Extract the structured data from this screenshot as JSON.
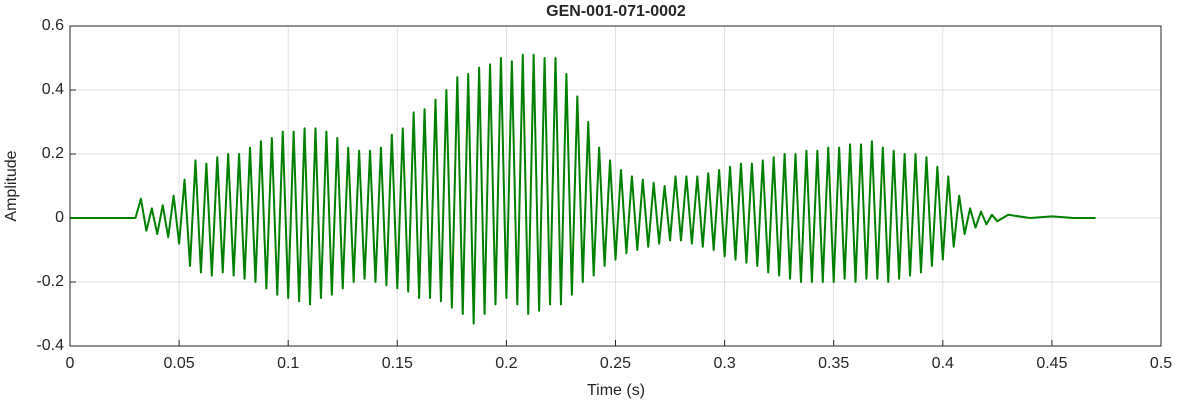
{
  "chart_data": {
    "type": "line",
    "title": "GEN-001-071-0002",
    "x_label": "Time (s)",
    "y_label": "Amplitude",
    "color": "#007f00",
    "grid": true,
    "xlim": [
      0,
      0.5
    ],
    "xticks": [
      0,
      0.05,
      0.1,
      0.15,
      0.2,
      0.25,
      0.3,
      0.35,
      0.4,
      0.45,
      0.5
    ],
    "ylim": [
      -0.4,
      0.6
    ],
    "yticks": [
      -0.4,
      -0.2,
      0,
      0.2,
      0.4,
      0.6
    ],
    "x": [
      0,
      0.02,
      0.03,
      0.0325,
      0.035,
      0.0375,
      0.04,
      0.0425,
      0.045,
      0.0475,
      0.05,
      0.0525,
      0.055,
      0.0575,
      0.06,
      0.0625,
      0.065,
      0.0675,
      0.07,
      0.0725,
      0.075,
      0.0775,
      0.08,
      0.0825,
      0.085,
      0.0875,
      0.09,
      0.0925,
      0.095,
      0.0975,
      0.1,
      0.1025,
      0.105,
      0.1075,
      0.11,
      0.1125,
      0.115,
      0.1175,
      0.12,
      0.1225,
      0.125,
      0.1275,
      0.13,
      0.1325,
      0.135,
      0.1375,
      0.14,
      0.1425,
      0.145,
      0.1475,
      0.15,
      0.1525,
      0.155,
      0.1575,
      0.16,
      0.1625,
      0.165,
      0.1675,
      0.17,
      0.1725,
      0.175,
      0.1775,
      0.18,
      0.1825,
      0.185,
      0.1875,
      0.19,
      0.1925,
      0.195,
      0.1975,
      0.2,
      0.2025,
      0.205,
      0.2075,
      0.21,
      0.2125,
      0.215,
      0.2175,
      0.22,
      0.2225,
      0.225,
      0.2275,
      0.23,
      0.2325,
      0.235,
      0.2375,
      0.24,
      0.2425,
      0.245,
      0.2475,
      0.25,
      0.2525,
      0.255,
      0.2575,
      0.26,
      0.2625,
      0.265,
      0.2675,
      0.27,
      0.2725,
      0.275,
      0.2775,
      0.28,
      0.2825,
      0.285,
      0.2875,
      0.29,
      0.2925,
      0.295,
      0.2975,
      0.3,
      0.3025,
      0.305,
      0.3075,
      0.31,
      0.3125,
      0.315,
      0.3175,
      0.32,
      0.3225,
      0.325,
      0.3275,
      0.33,
      0.3325,
      0.335,
      0.3375,
      0.34,
      0.3425,
      0.345,
      0.3475,
      0.35,
      0.3525,
      0.355,
      0.3575,
      0.36,
      0.3625,
      0.365,
      0.3675,
      0.37,
      0.3725,
      0.375,
      0.3775,
      0.38,
      0.3825,
      0.385,
      0.3875,
      0.39,
      0.3925,
      0.395,
      0.3975,
      0.4,
      0.4025,
      0.405,
      0.4075,
      0.41,
      0.4125,
      0.415,
      0.4175,
      0.42,
      0.4225,
      0.425,
      0.43,
      0.44,
      0.45,
      0.46,
      0.47
    ],
    "values": [
      0,
      0,
      0,
      0.06,
      -0.04,
      0.03,
      -0.05,
      0.04,
      -0.06,
      0.07,
      -0.08,
      0.12,
      -0.15,
      0.18,
      -0.17,
      0.17,
      -0.18,
      0.19,
      -0.17,
      0.2,
      -0.18,
      0.2,
      -0.19,
      0.22,
      -0.2,
      0.24,
      -0.22,
      0.25,
      -0.24,
      0.27,
      -0.25,
      0.27,
      -0.26,
      0.28,
      -0.27,
      0.28,
      -0.25,
      0.27,
      -0.24,
      0.25,
      -0.22,
      0.22,
      -0.2,
      0.21,
      -0.19,
      0.21,
      -0.2,
      0.22,
      -0.21,
      0.26,
      -0.22,
      0.28,
      -0.23,
      0.33,
      -0.25,
      0.34,
      -0.25,
      0.37,
      -0.26,
      0.4,
      -0.28,
      0.44,
      -0.3,
      0.45,
      -0.33,
      0.47,
      -0.3,
      0.48,
      -0.27,
      0.5,
      -0.25,
      0.49,
      -0.27,
      0.51,
      -0.3,
      0.51,
      -0.29,
      0.5,
      -0.27,
      0.5,
      -0.27,
      0.45,
      -0.24,
      0.38,
      -0.2,
      0.3,
      -0.18,
      0.22,
      -0.15,
      0.18,
      -0.13,
      0.15,
      -0.11,
      0.13,
      -0.1,
      0.12,
      -0.09,
      0.11,
      -0.08,
      0.1,
      -0.07,
      0.13,
      -0.07,
      0.13,
      -0.08,
      0.13,
      -0.09,
      0.14,
      -0.1,
      0.15,
      -0.12,
      0.16,
      -0.13,
      0.17,
      -0.14,
      0.17,
      -0.15,
      0.18,
      -0.17,
      0.19,
      -0.18,
      0.2,
      -0.19,
      0.2,
      -0.2,
      0.21,
      -0.2,
      0.21,
      -0.2,
      0.22,
      -0.2,
      0.22,
      -0.19,
      0.23,
      -0.2,
      0.23,
      -0.19,
      0.24,
      -0.19,
      0.22,
      -0.2,
      0.21,
      -0.19,
      0.2,
      -0.18,
      0.2,
      -0.17,
      0.19,
      -0.15,
      0.16,
      -0.13,
      0.13,
      -0.09,
      0.07,
      -0.05,
      0.03,
      -0.03,
      0.02,
      -0.02,
      0.01,
      -0.01,
      0.01,
      0,
      0.005,
      0,
      0
    ]
  }
}
